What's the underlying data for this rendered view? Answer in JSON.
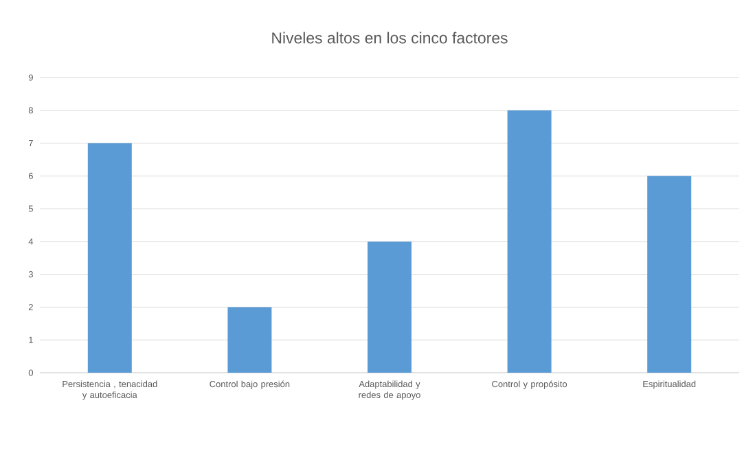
{
  "chart_data": {
    "type": "bar",
    "title": "Niveles altos en los cinco factores",
    "categories": [
      "Persistencia , tenacidad y autoeficacia",
      "Control bajo presión",
      "Adaptabilidad y redes de apoyo",
      "Control y propósito",
      "Espiritualidad"
    ],
    "values": [
      7,
      2,
      4,
      8,
      6
    ],
    "color": "#5b9bd5",
    "ylim": [
      0,
      9
    ],
    "yticks": [
      0,
      1,
      2,
      3,
      4,
      5,
      6,
      7,
      8,
      9
    ],
    "grid": "y"
  }
}
